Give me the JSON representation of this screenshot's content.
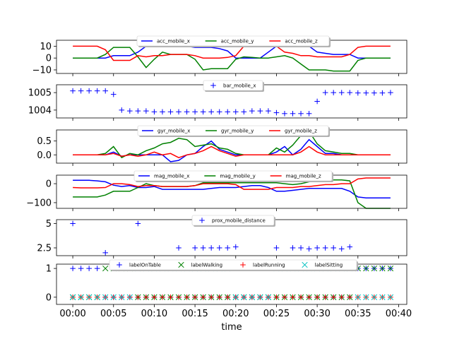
{
  "chart_data": {
    "xlabel": "time",
    "x_ticks": [
      "00:00",
      "00:05",
      "00:10",
      "00:15",
      "00:20",
      "00:25",
      "00:30",
      "00:35",
      "00:40"
    ],
    "x_range_minutes": [
      -2,
      41
    ],
    "x_minutes": [
      0,
      1,
      2,
      3,
      4,
      5,
      6,
      7,
      8,
      9,
      10,
      11,
      12,
      13,
      14,
      15,
      16,
      17,
      18,
      19,
      20,
      21,
      22,
      23,
      24,
      25,
      26,
      27,
      28,
      29,
      30,
      31,
      32,
      33,
      34,
      35,
      36,
      37,
      38,
      39
    ],
    "panels": [
      {
        "type": "line",
        "ylim": [
          -13,
          15
        ],
        "yticks": [
          -10,
          0,
          10
        ],
        "series": [
          {
            "name": "acc_mobile_x",
            "color": "#0000ff",
            "values": [
              0,
              0,
              0,
              0,
              0,
              2,
              2,
              2,
              5,
              10,
              10,
              10,
              10,
              10,
              10,
              9,
              9,
              9,
              8,
              6,
              0,
              0,
              0,
              0,
              5,
              10,
              10,
              10,
              10,
              10,
              5,
              4,
              3,
              3,
              3,
              0,
              0,
              0,
              0,
              0
            ]
          },
          {
            "name": "acc_mobile_y",
            "color": "#008000",
            "values": [
              0,
              0,
              0,
              0,
              3,
              9,
              9,
              9,
              1,
              -8,
              -1,
              5,
              3,
              3,
              3,
              -1,
              -10,
              -9,
              -9,
              -9,
              -1,
              1,
              0.5,
              0,
              0,
              1,
              2,
              0,
              -5,
              -10,
              -10,
              -10,
              -11,
              -11,
              -11,
              -2,
              0,
              0,
              0,
              0
            ]
          },
          {
            "name": "acc_mobile_z",
            "color": "#ff0000",
            "values": [
              10,
              10,
              10,
              10,
              7,
              -2,
              -2,
              -2,
              2,
              1,
              2,
              2,
              3,
              3,
              3,
              2,
              0,
              0,
              0,
              0.5,
              2,
              10,
              10,
              10,
              10,
              10,
              5,
              4,
              2,
              2,
              1,
              1,
              1,
              1,
              3,
              9,
              10,
              10,
              10,
              10
            ]
          }
        ]
      },
      {
        "type": "scatter",
        "ylim": [
          1003.55,
          1005.45
        ],
        "yticks": [
          1004,
          1005
        ],
        "series": [
          {
            "name": "bar_mobile_x",
            "color": "#0000ff",
            "marker": "+",
            "values": [
              1005.1,
              1005.1,
              1005.1,
              1005.1,
              1005.1,
              1004.9,
              1004,
              1003.95,
              1003.95,
              1003.95,
              1003.9,
              1003.9,
              1003.9,
              1003.9,
              1003.9,
              1003.9,
              1003.9,
              1003.9,
              1003.9,
              1003.9,
              1003.9,
              1003.9,
              1003.95,
              1003.95,
              1003.95,
              1003.85,
              1003.8,
              1003.8,
              1003.8,
              1003.8,
              1004.5,
              1005,
              1005,
              1005,
              1005,
              1004.98,
              1004.98,
              1004.98,
              1004.98,
              1005
            ]
          }
        ]
      },
      {
        "type": "line",
        "ylim": [
          -0.3,
          0.9
        ],
        "yticks": [
          0.0,
          0.5
        ],
        "series": [
          {
            "name": "gyr_mobile_x",
            "color": "#0000ff",
            "values": [
              0,
              0,
              0,
              0,
              0,
              0.1,
              -0.05,
              0,
              0,
              0,
              0,
              0,
              -0.25,
              -0.2,
              0,
              0.05,
              0.3,
              0.5,
              0.2,
              0.1,
              0,
              0,
              0,
              0,
              0,
              0.1,
              0.3,
              0,
              0.2,
              0.55,
              0.3,
              0.05,
              0.05,
              0,
              0,
              0,
              0,
              0,
              0,
              0
            ]
          },
          {
            "name": "gyr_mobile_y",
            "color": "#008000",
            "values": [
              0,
              0,
              0,
              0,
              0.05,
              0.3,
              -0.1,
              0.05,
              0,
              0.15,
              0.25,
              0.4,
              0.45,
              0.6,
              0.55,
              0.3,
              0.35,
              0.4,
              0.25,
              0.2,
              0.05,
              0,
              0,
              0,
              0,
              0.25,
              0.1,
              0.35,
              0.7,
              0.85,
              0.4,
              0.15,
              0.1,
              0.05,
              0.05,
              0,
              0,
              0,
              0,
              0
            ]
          },
          {
            "name": "gyr_mobile_z",
            "color": "#ff0000",
            "values": [
              0,
              0,
              0,
              0,
              0,
              0.05,
              -0.05,
              0,
              -0.05,
              0,
              0.1,
              0,
              0.05,
              -0.1,
              0,
              0.05,
              0.15,
              0.3,
              0.15,
              0.05,
              -0.05,
              0,
              0,
              0,
              0,
              0,
              0,
              0,
              0.1,
              0.3,
              0.1,
              0,
              0,
              0,
              0,
              0,
              0,
              0,
              0,
              0
            ]
          }
        ]
      },
      {
        "type": "line",
        "ylim": [
          -130,
          45
        ],
        "yticks": [
          -100,
          0
        ],
        "series": [
          {
            "name": "mag_mobile_x",
            "color": "#0000ff",
            "values": [
              18,
              18,
              18,
              15,
              10,
              -8,
              -15,
              -10,
              -20,
              -20,
              -15,
              -30,
              -30,
              -30,
              -30,
              -30,
              -30,
              -25,
              -20,
              -20,
              -20,
              -15,
              -10,
              -10,
              -20,
              -40,
              -40,
              -35,
              -30,
              -25,
              -25,
              -25,
              -25,
              -25,
              -40,
              -70,
              -75,
              -75,
              -75,
              -75
            ]
          },
          {
            "name": "mag_mobile_y",
            "color": "#008000",
            "values": [
              -70,
              -70,
              -70,
              -70,
              -60,
              -40,
              -40,
              -40,
              -20,
              0,
              -10,
              -15,
              -15,
              -15,
              -15,
              -10,
              5,
              5,
              5,
              5,
              5,
              5,
              5,
              5,
              5,
              5,
              0,
              -5,
              0,
              10,
              15,
              20,
              20,
              20,
              15,
              -100,
              -130,
              -130,
              -130,
              -130
            ]
          },
          {
            "name": "mag_mobile_z",
            "color": "#ff0000",
            "values": [
              -20,
              -22,
              -22,
              -22,
              -20,
              0,
              0,
              -5,
              -15,
              -10,
              -10,
              -15,
              -15,
              -15,
              -15,
              -10,
              0,
              0,
              0,
              0,
              -5,
              -30,
              -30,
              -30,
              -30,
              -20,
              -20,
              -20,
              -15,
              -15,
              -10,
              -5,
              -5,
              0,
              0,
              25,
              30,
              30,
              30,
              30
            ]
          }
        ]
      },
      {
        "type": "scatter",
        "ylim": [
          1.7,
          5.4
        ],
        "yticks": [
          2.5,
          5.0
        ],
        "series": [
          {
            "name": "prox_mobile_distance",
            "color": "#0000ff",
            "marker": "+",
            "x": [
              0,
              4,
              8,
              13,
              15,
              16,
              17,
              18,
              19,
              20,
              25,
              27,
              28,
              29,
              30,
              31,
              32,
              33,
              34
            ],
            "values": [
              5,
              2,
              5,
              2.5,
              2.5,
              2.5,
              2.5,
              2.5,
              2.5,
              2.6,
              2.5,
              2.5,
              2.5,
              2.4,
              2.5,
              2.5,
              2.5,
              2.4,
              2.6
            ]
          }
        ]
      },
      {
        "type": "scatter",
        "ylim": [
          -0.25,
          1.15
        ],
        "yticks": [
          0,
          1
        ],
        "series": [
          {
            "name": "labelOnTable",
            "color": "#0000ff",
            "marker": "+",
            "values": [
              1,
              1,
              1,
              1,
              0,
              0,
              0,
              0,
              0,
              0,
              0,
              0,
              0,
              0,
              0,
              0,
              0,
              0,
              0,
              0,
              0,
              0,
              0,
              0,
              0,
              0,
              0,
              0,
              0,
              0,
              0,
              0,
              0,
              0,
              0,
              1,
              1,
              1,
              1,
              1
            ]
          },
          {
            "name": "labelWalking",
            "color": "#008000",
            "marker": "x",
            "values": [
              0,
              0,
              0,
              0,
              1,
              1,
              1,
              1,
              0,
              0,
              0,
              0,
              0,
              0,
              0,
              0,
              0,
              0,
              0,
              0,
              0,
              0,
              0,
              0,
              0,
              0,
              0,
              0,
              0,
              0,
              0,
              0,
              0,
              0,
              0,
              1,
              1,
              1,
              1,
              1
            ]
          },
          {
            "name": "labelRunning",
            "color": "#ff0000",
            "marker": "+",
            "values": [
              0,
              0,
              0,
              0,
              0,
              0,
              0,
              0,
              0,
              0,
              0,
              0,
              0,
              0,
              0,
              0,
              0,
              0,
              0,
              0,
              0,
              0,
              0,
              0,
              0,
              0,
              0,
              0,
              0,
              0,
              0,
              0,
              0,
              0,
              0,
              0,
              0,
              0,
              0,
              0
            ]
          },
          {
            "name": "labelSitting",
            "color": "#00bfbf",
            "marker": "x",
            "values": [
              0,
              0,
              0,
              0,
              0,
              0,
              0,
              0,
              1,
              1,
              1,
              1,
              1,
              1,
              1,
              1,
              1,
              1,
              1,
              1,
              0,
              0,
              0,
              0,
              0,
              1,
              1,
              1,
              1,
              1,
              1,
              1,
              1,
              1,
              1,
              0,
              0,
              0,
              0,
              0
            ]
          }
        ]
      }
    ]
  }
}
